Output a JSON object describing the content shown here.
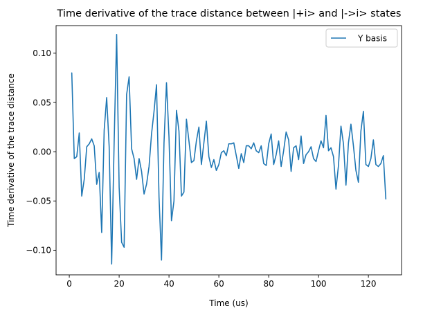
{
  "chart_data": {
    "type": "line",
    "title": "Time derivative of the trace distance between |+i> and |->i> states",
    "xlabel": "Time (us)",
    "ylabel": "Time derivative of the trace distance",
    "xlim": [
      -5.3,
      133.3
    ],
    "ylim": [
      -0.125,
      0.128
    ],
    "xticks": [
      0,
      20,
      40,
      60,
      80,
      100,
      120
    ],
    "yticks": [
      -0.1,
      -0.05,
      0.0,
      0.05,
      0.1
    ],
    "ytick_labels": [
      "−0.10",
      "−0.05",
      "0.00",
      "0.05",
      "0.10"
    ],
    "grid": false,
    "legend_position": "top-right",
    "series": [
      {
        "name": "Y basis",
        "color": "#1f77b4",
        "x": [
          1,
          2,
          3,
          4,
          5,
          6,
          7,
          8,
          9,
          10,
          11,
          12,
          13,
          14,
          15,
          16,
          17,
          18,
          19,
          20,
          21,
          22,
          23,
          24,
          25,
          26,
          27,
          28,
          29,
          30,
          31,
          32,
          33,
          34,
          35,
          36,
          37,
          38,
          39,
          40,
          41,
          42,
          43,
          44,
          45,
          46,
          47,
          48,
          49,
          50,
          51,
          52,
          53,
          54,
          55,
          56,
          57,
          58,
          59,
          60,
          61,
          62,
          63,
          64,
          65,
          66,
          67,
          68,
          69,
          70,
          71,
          72,
          73,
          74,
          75,
          76,
          77,
          78,
          79,
          80,
          81,
          82,
          83,
          84,
          85,
          86,
          87,
          88,
          89,
          90,
          91,
          92,
          93,
          94,
          95,
          96,
          97,
          98,
          99,
          100,
          101,
          102,
          103,
          104,
          105,
          106,
          107,
          108,
          109,
          110,
          111,
          112,
          113,
          114,
          115,
          116,
          117,
          118,
          119,
          120,
          121,
          122,
          123,
          124,
          125,
          126,
          127
        ],
        "y": [
          0.08,
          -0.007,
          -0.005,
          0.019,
          -0.045,
          -0.028,
          0.005,
          0.008,
          0.013,
          0.006,
          -0.033,
          -0.021,
          -0.082,
          0.022,
          0.055,
          0.005,
          -0.114,
          0.01,
          0.119,
          -0.036,
          -0.092,
          -0.097,
          0.058,
          0.076,
          0.003,
          -0.007,
          -0.028,
          -0.007,
          -0.02,
          -0.043,
          -0.033,
          -0.015,
          0.018,
          0.041,
          0.068,
          -0.046,
          -0.11,
          0.009,
          0.07,
          0.015,
          -0.07,
          -0.05,
          0.042,
          0.021,
          -0.045,
          -0.041,
          0.033,
          0.011,
          -0.011,
          -0.009,
          0.011,
          0.025,
          -0.013,
          0.009,
          0.031,
          -0.005,
          -0.016,
          -0.008,
          -0.019,
          -0.013,
          -0.001,
          0.001,
          -0.004,
          0.008,
          0.008,
          0.009,
          -0.004,
          -0.017,
          -0.002,
          -0.011,
          0.006,
          0.006,
          0.003,
          0.009,
          0.001,
          -0.001,
          0.006,
          -0.012,
          -0.014,
          0.008,
          0.018,
          -0.013,
          -0.003,
          0.011,
          -0.015,
          0.001,
          0.02,
          0.012,
          -0.02,
          0.004,
          0.006,
          -0.008,
          0.016,
          -0.012,
          -0.003,
          0.0,
          0.005,
          -0.007,
          -0.01,
          0.001,
          0.011,
          0.004,
          0.037,
          0.001,
          0.004,
          -0.005,
          -0.038,
          -0.014,
          0.026,
          0.008,
          -0.034,
          0.009,
          0.028,
          0.006,
          -0.019,
          -0.031,
          0.021,
          0.041,
          -0.013,
          -0.015,
          -0.007,
          0.012,
          -0.013,
          -0.015,
          -0.012,
          -0.004,
          -0.048
        ]
      }
    ]
  }
}
